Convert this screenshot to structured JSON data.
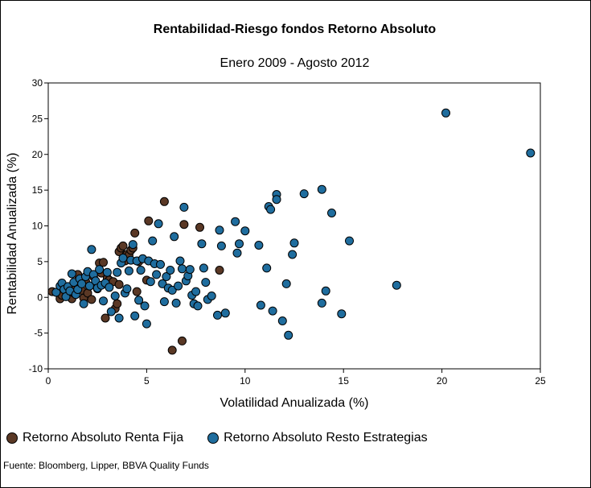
{
  "chart_data": {
    "type": "scatter",
    "title": "Rentabilidad-Riesgo fondos Retorno Absoluto",
    "subtitle": "Enero 2009 - Agosto 2012",
    "xlabel": "Volatilidad Anualizada (%)",
    "ylabel": "Rentabilidad Anualizada (%)",
    "xlim": [
      0,
      25
    ],
    "ylim": [
      -10,
      30
    ],
    "xticks": [
      "0",
      "5",
      "10",
      "15",
      "20",
      "25"
    ],
    "yticks": [
      "-10",
      "-5",
      "0",
      "5",
      "10",
      "15",
      "20",
      "25",
      "30"
    ],
    "grid": false,
    "legend": "bottom",
    "source": "Fuente: Bloomberg, Lipper, BBVA Quality Funds",
    "series": [
      {
        "name": "Retorno Absoluto Renta Fija",
        "color": "#5a3825",
        "points": [
          [
            0.2,
            0.8
          ],
          [
            0.5,
            0.6
          ],
          [
            0.6,
            -0.2
          ],
          [
            0.7,
            0.3
          ],
          [
            0.9,
            0.9
          ],
          [
            1.0,
            0.4
          ],
          [
            1.1,
            1.3
          ],
          [
            1.2,
            -0.2
          ],
          [
            1.3,
            0.6
          ],
          [
            1.4,
            1.4
          ],
          [
            1.5,
            3.2
          ],
          [
            1.6,
            2.0
          ],
          [
            1.7,
            1.0
          ],
          [
            1.8,
            -0.1
          ],
          [
            1.9,
            2.2
          ],
          [
            2.0,
            0.6
          ],
          [
            2.1,
            1.6
          ],
          [
            2.2,
            -0.3
          ],
          [
            2.3,
            2.9
          ],
          [
            2.4,
            2.0
          ],
          [
            2.5,
            1.2
          ],
          [
            2.6,
            4.8
          ],
          [
            2.7,
            3.4
          ],
          [
            2.8,
            4.9
          ],
          [
            2.9,
            -2.9
          ],
          [
            3.0,
            2.7
          ],
          [
            3.1,
            2.4
          ],
          [
            3.3,
            2.2
          ],
          [
            3.4,
            -1.6
          ],
          [
            3.5,
            -0.9
          ],
          [
            3.6,
            1.8
          ],
          [
            3.6,
            6.4
          ],
          [
            3.7,
            6.9
          ],
          [
            3.8,
            7.2
          ],
          [
            3.9,
            5.1
          ],
          [
            4.0,
            6.0
          ],
          [
            4.1,
            5.9
          ],
          [
            4.2,
            6.6
          ],
          [
            4.3,
            6.9
          ],
          [
            4.4,
            9.0
          ],
          [
            4.5,
            0.8
          ],
          [
            4.6,
            5.0
          ],
          [
            5.0,
            2.4
          ],
          [
            5.1,
            10.7
          ],
          [
            5.9,
            13.4
          ],
          [
            6.3,
            -7.4
          ],
          [
            6.8,
            -6.1
          ],
          [
            6.9,
            10.2
          ],
          [
            7.7,
            9.8
          ],
          [
            8.7,
            3.8
          ]
        ]
      },
      {
        "name": "Retorno Absoluto Resto Estrategias",
        "color": "#1f6d9e",
        "points": [
          [
            0.4,
            0.7
          ],
          [
            0.6,
            1.6
          ],
          [
            0.7,
            2.0
          ],
          [
            0.8,
            1.1
          ],
          [
            0.9,
            0.1
          ],
          [
            1.0,
            1.5
          ],
          [
            1.1,
            0.9
          ],
          [
            1.2,
            3.3
          ],
          [
            1.3,
            2.1
          ],
          [
            1.4,
            0.4
          ],
          [
            1.5,
            1.1
          ],
          [
            1.6,
            2.6
          ],
          [
            1.7,
            1.9
          ],
          [
            1.8,
            -0.9
          ],
          [
            1.9,
            2.9
          ],
          [
            2.0,
            3.6
          ],
          [
            2.1,
            1.6
          ],
          [
            2.2,
            6.7
          ],
          [
            2.3,
            3.2
          ],
          [
            2.4,
            2.3
          ],
          [
            2.5,
            1.3
          ],
          [
            2.6,
            3.9
          ],
          [
            2.7,
            1.7
          ],
          [
            2.8,
            -0.5
          ],
          [
            2.9,
            2.0
          ],
          [
            3.0,
            3.5
          ],
          [
            3.1,
            1.4
          ],
          [
            3.2,
            -2.0
          ],
          [
            3.4,
            0.2
          ],
          [
            3.5,
            3.5
          ],
          [
            3.6,
            -2.9
          ],
          [
            3.7,
            4.8
          ],
          [
            3.8,
            5.5
          ],
          [
            3.9,
            0.6
          ],
          [
            4.0,
            1.2
          ],
          [
            4.1,
            3.7
          ],
          [
            4.2,
            5.2
          ],
          [
            4.3,
            7.4
          ],
          [
            4.4,
            -2.6
          ],
          [
            4.5,
            5.1
          ],
          [
            4.6,
            -0.4
          ],
          [
            4.7,
            3.8
          ],
          [
            4.8,
            5.4
          ],
          [
            4.9,
            -1.2
          ],
          [
            5.0,
            -3.7
          ],
          [
            5.1,
            5.1
          ],
          [
            5.2,
            2.2
          ],
          [
            5.3,
            7.9
          ],
          [
            5.4,
            4.7
          ],
          [
            5.5,
            3.2
          ],
          [
            5.6,
            10.3
          ],
          [
            5.7,
            4.6
          ],
          [
            5.8,
            1.9
          ],
          [
            5.9,
            -0.6
          ],
          [
            6.0,
            2.9
          ],
          [
            6.1,
            1.3
          ],
          [
            6.2,
            3.8
          ],
          [
            6.3,
            1.0
          ],
          [
            6.4,
            8.5
          ],
          [
            6.5,
            -0.8
          ],
          [
            6.6,
            1.6
          ],
          [
            6.7,
            5.1
          ],
          [
            6.8,
            4.0
          ],
          [
            6.9,
            12.6
          ],
          [
            7.0,
            2.3
          ],
          [
            7.1,
            3.0
          ],
          [
            7.2,
            3.9
          ],
          [
            7.3,
            0.3
          ],
          [
            7.4,
            -0.9
          ],
          [
            7.5,
            0.8
          ],
          [
            7.6,
            -1.2
          ],
          [
            7.8,
            7.5
          ],
          [
            7.9,
            4.1
          ],
          [
            8.0,
            2.1
          ],
          [
            8.1,
            -0.3
          ],
          [
            8.3,
            0.2
          ],
          [
            8.6,
            -2.5
          ],
          [
            8.7,
            9.4
          ],
          [
            8.8,
            7.2
          ],
          [
            9.0,
            -2.2
          ],
          [
            9.5,
            10.6
          ],
          [
            9.6,
            6.2
          ],
          [
            9.7,
            7.5
          ],
          [
            10.0,
            9.3
          ],
          [
            10.7,
            7.3
          ],
          [
            10.8,
            -1.1
          ],
          [
            11.1,
            4.1
          ],
          [
            11.2,
            12.7
          ],
          [
            11.3,
            12.3
          ],
          [
            11.4,
            -1.9
          ],
          [
            11.6,
            14.4
          ],
          [
            11.6,
            13.7
          ],
          [
            11.9,
            -3.3
          ],
          [
            12.1,
            1.9
          ],
          [
            12.2,
            -5.3
          ],
          [
            12.4,
            6.0
          ],
          [
            12.5,
            7.6
          ],
          [
            13.0,
            14.5
          ],
          [
            13.9,
            15.1
          ],
          [
            13.9,
            -0.8
          ],
          [
            14.1,
            0.9
          ],
          [
            14.4,
            11.8
          ],
          [
            14.9,
            -2.3
          ],
          [
            15.3,
            7.9
          ],
          [
            17.7,
            1.7
          ],
          [
            20.2,
            25.8
          ],
          [
            24.5,
            20.2
          ]
        ]
      }
    ]
  }
}
